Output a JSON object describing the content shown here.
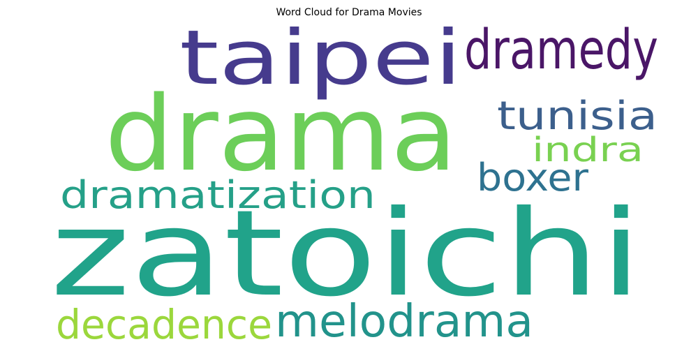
{
  "chart_data": {
    "type": "wordcloud",
    "title": "Word Cloud for Drama Movies",
    "background": "#ffffff",
    "colormap": "viridis",
    "words": [
      {
        "text": "zatoichi",
        "color": "#21a38a"
      },
      {
        "text": "drama",
        "color": "#6cce59"
      },
      {
        "text": "taipei",
        "color": "#463b8d"
      },
      {
        "text": "dramedy",
        "color": "#4a1667"
      },
      {
        "text": "tunisia",
        "color": "#3c5f8c"
      },
      {
        "text": "indra",
        "color": "#79d151"
      },
      {
        "text": "boxer",
        "color": "#2e7290"
      },
      {
        "text": "dramatization",
        "color": "#25a088"
      },
      {
        "text": "melodrama",
        "color": "#22938b"
      },
      {
        "text": "decadence",
        "color": "#9bd73c"
      }
    ]
  }
}
